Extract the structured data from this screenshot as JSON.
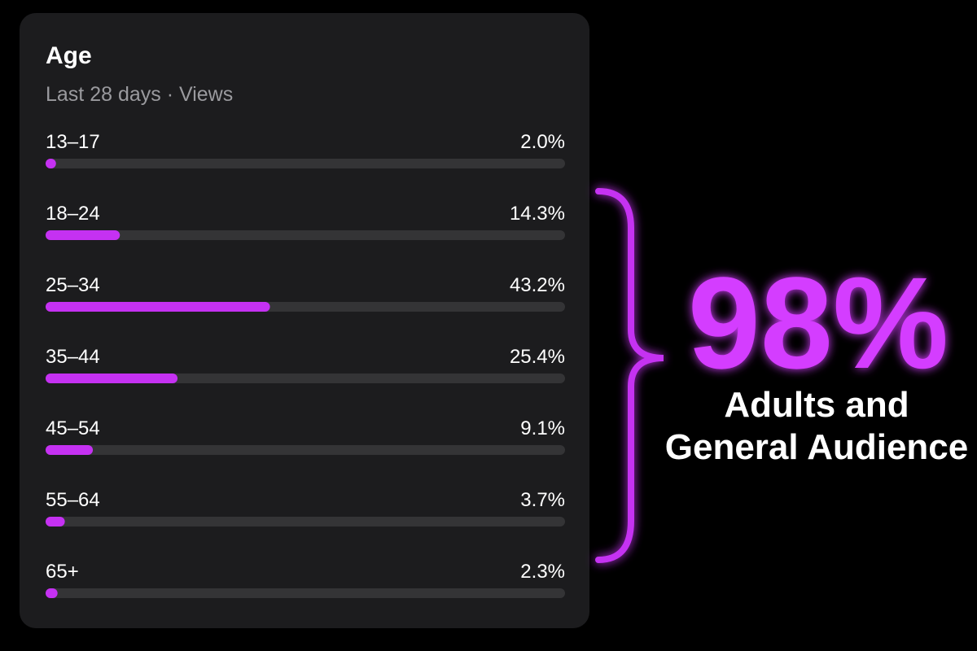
{
  "chart_data": {
    "type": "bar",
    "orientation": "horizontal",
    "title": "Age",
    "subtitle": "Last 28 days · Views",
    "categories": [
      "13–17",
      "18–24",
      "25–34",
      "35–44",
      "45–54",
      "55–64",
      "65+"
    ],
    "values": [
      2.0,
      14.3,
      43.2,
      25.4,
      9.1,
      3.7,
      2.3
    ],
    "value_labels": [
      "2.0%",
      "14.3%",
      "43.2%",
      "25.4%",
      "9.1%",
      "3.7%",
      "2.3%"
    ],
    "color": "#c531f2",
    "xlim": [
      0,
      100
    ],
    "callout": {
      "headline": "98%",
      "lines": [
        "Adults and",
        "General Audience"
      ]
    }
  }
}
